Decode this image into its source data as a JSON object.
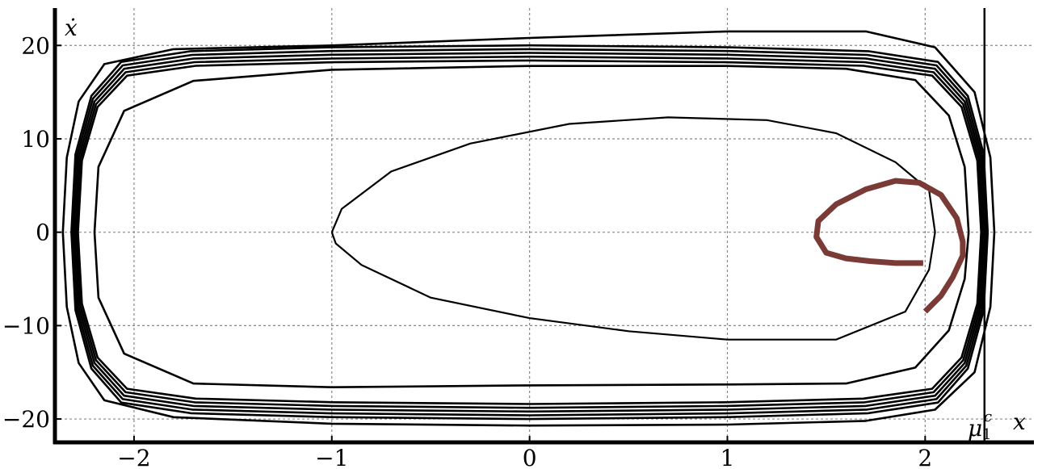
{
  "chart_data": {
    "type": "line",
    "xlabel": "x",
    "ylabel": "ẋ",
    "xlim": [
      -2.4,
      2.55
    ],
    "ylim": [
      -22.5,
      24
    ],
    "x_ticks": [
      -2,
      -1,
      0,
      1,
      2
    ],
    "y_ticks": [
      -20,
      -10,
      0,
      10,
      20
    ],
    "x_tick_labels": [
      "−2",
      "−1",
      "0",
      "1",
      "2"
    ],
    "y_tick_labels": [
      "−20",
      "−10",
      "0",
      "10",
      "20"
    ],
    "grid": true,
    "vertical_marker": {
      "x": 2.3,
      "label_main": "μ",
      "label_sup": "c",
      "label_sub": "1"
    },
    "series": [
      {
        "role": "outer-limit-cycle",
        "color": "#000000",
        "x": [
          2.3,
          2.28,
          2.2,
          2.05,
          1.7,
          1.0,
          0.0,
          -1.0,
          -1.7,
          -2.05,
          -2.2,
          -2.28,
          -2.3,
          -2.28,
          -2.2,
          -2.05,
          -1.7,
          -1.0,
          0.0,
          1.0,
          1.7,
          2.05,
          2.2,
          2.28,
          2.3
        ],
        "y": [
          0,
          8,
          14,
          17.5,
          18.6,
          19.0,
          19.2,
          19.0,
          18.6,
          17.5,
          14,
          8,
          0,
          -8,
          -14,
          -17.5,
          -18.6,
          -19.0,
          -19.2,
          -19.0,
          -18.6,
          -17.5,
          -14,
          -8,
          0
        ]
      },
      {
        "role": "transient-outer",
        "color": "#000000",
        "x": [
          2.35,
          2.33,
          2.25,
          2.05,
          1.7,
          1.0,
          0.0,
          -1.0,
          -1.8,
          -2.15,
          -2.28,
          -2.34,
          -2.36,
          -2.34,
          -2.28,
          -2.15,
          -1.8,
          -1.0,
          0.0,
          1.0,
          1.7,
          2.05,
          2.25,
          2.33,
          2.35
        ],
        "y": [
          0,
          8,
          15,
          19.8,
          21.5,
          21.5,
          20.8,
          20.0,
          19.6,
          18,
          14,
          8,
          0,
          -8,
          -14,
          -18,
          -19.8,
          -20.5,
          -20.7,
          -20.6,
          -20.2,
          -19,
          -15,
          -8,
          0
        ]
      },
      {
        "role": "transient-inner",
        "color": "#000000",
        "x": [
          2.22,
          2.2,
          2.12,
          1.95,
          1.6,
          1.0,
          0.0,
          -1.0,
          -1.7,
          -2.05,
          -2.18,
          -2.2,
          -2.18,
          -2.05,
          -1.7,
          -1.0,
          0.0,
          1.0,
          1.6,
          1.95,
          2.12,
          2.2,
          2.22
        ],
        "y": [
          0,
          7,
          12.5,
          16.3,
          17.5,
          17.8,
          17.8,
          17.4,
          16.2,
          13,
          7,
          0,
          -7,
          -13,
          -16.2,
          -16.6,
          -16.4,
          -16.3,
          -16.2,
          -14.5,
          -10.5,
          -5,
          0
        ]
      },
      {
        "role": "unstable-cycle",
        "color": "#000000",
        "x": [
          -1.0,
          -0.95,
          -0.7,
          -0.3,
          0.2,
          0.7,
          1.2,
          1.55,
          1.85,
          2.02,
          2.05,
          2.02,
          1.9,
          1.55,
          1.0,
          0.5,
          0.0,
          -0.5,
          -0.85,
          -0.98,
          -1.0
        ],
        "y": [
          0,
          2.5,
          6.5,
          9.5,
          11.6,
          12.3,
          12.0,
          10.6,
          7.5,
          4.5,
          0,
          -4,
          -8.5,
          -11.5,
          -11.5,
          -10.6,
          -9.2,
          -7.0,
          -3.5,
          -1.2,
          0
        ]
      },
      {
        "role": "highlighted-trajectory",
        "color": "#7a3b36",
        "x": [
          1.99,
          1.85,
          1.72,
          1.6,
          1.5,
          1.45,
          1.46,
          1.55,
          1.7,
          1.85,
          1.97,
          2.08,
          2.16,
          2.19,
          2.19,
          2.14,
          2.08,
          2.0
        ],
        "y": [
          -3.3,
          -3.3,
          -3.1,
          -2.8,
          -2.2,
          -0.5,
          1.2,
          3.0,
          4.6,
          5.5,
          5.3,
          4.0,
          1.5,
          -1.0,
          -2.5,
          -4.8,
          -6.8,
          -8.5
        ]
      }
    ]
  }
}
